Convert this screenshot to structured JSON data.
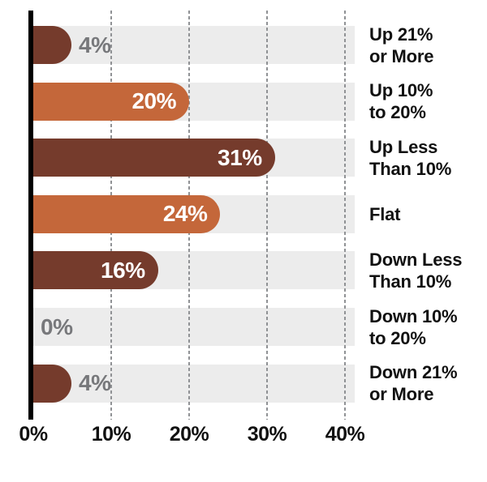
{
  "chart_data": {
    "type": "bar",
    "orientation": "horizontal",
    "title": "",
    "grid": "dashed-vertical",
    "legend": null,
    "x_axis": {
      "ticks": [
        0,
        10,
        20,
        30,
        40
      ],
      "tick_labels": [
        "0%",
        "10%",
        "20%",
        "30%",
        "40%"
      ],
      "min": 0,
      "max": 42
    },
    "categories": [
      "Up 21% or More",
      "Up 10% to 20%",
      "Up Less Than 10%",
      "Flat",
      "Down Less Than 10%",
      "Down 10% to 20%",
      "Down 21% or More"
    ],
    "values": [
      4,
      20,
      31,
      24,
      16,
      0,
      4
    ],
    "rows": [
      {
        "label_lines": [
          "Up 21%",
          "or More"
        ],
        "value": 4,
        "value_label": "4%",
        "color": "#753B2C",
        "label_inside": false
      },
      {
        "label_lines": [
          "Up 10%",
          "to 20%"
        ],
        "value": 20,
        "value_label": "20%",
        "color": "#C4673A",
        "label_inside": true
      },
      {
        "label_lines": [
          "Up Less",
          "Than 10%"
        ],
        "value": 31,
        "value_label": "31%",
        "color": "#753B2C",
        "label_inside": true
      },
      {
        "label_lines": [
          "Flat"
        ],
        "value": 24,
        "value_label": "24%",
        "color": "#C4673A",
        "label_inside": true
      },
      {
        "label_lines": [
          "Down Less",
          "Than 10%"
        ],
        "value": 16,
        "value_label": "16%",
        "color": "#753B2C",
        "label_inside": true
      },
      {
        "label_lines": [
          "Down 10%",
          "to 20%"
        ],
        "value": 0,
        "value_label": "0%",
        "color": null,
        "label_inside": false
      },
      {
        "label_lines": [
          "Down 21%",
          "or More"
        ],
        "value": 4,
        "value_label": "4%",
        "color": "#753B2C",
        "label_inside": false
      }
    ],
    "colors": {
      "bar_brown": "#753B2C",
      "bar_orange": "#C4673A",
      "row_band": "#ECECEC",
      "gridline": "#909295",
      "axis_line": "#000000",
      "value_label_outside": "#77787B",
      "value_label_inside": "#FFFFFF",
      "category_text": "#111111",
      "axis_text": "#111111",
      "background": "#FFFFFF"
    }
  }
}
